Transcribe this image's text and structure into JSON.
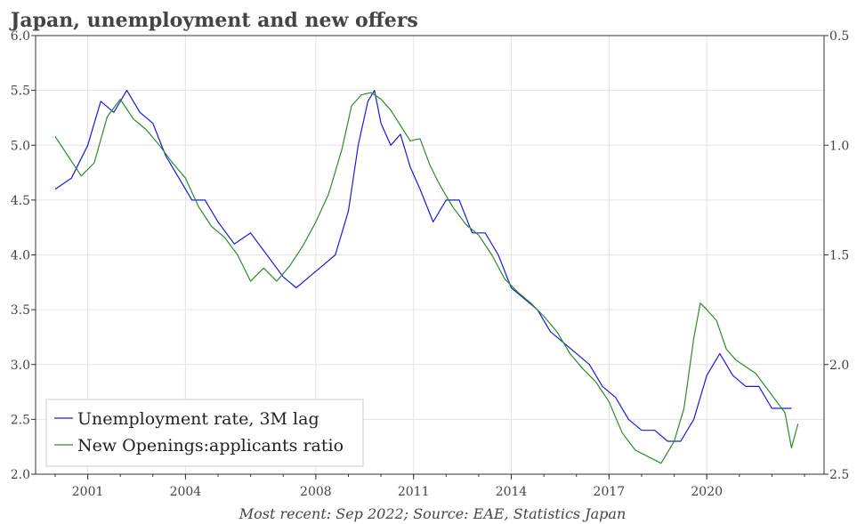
{
  "chart_data": {
    "type": "line",
    "title": "Japan, unemployment and new offers",
    "source": "Most recent: Sep 2022; Source: EAE, Statistics Japan",
    "x_axis": {
      "range": [
        1999.4,
        2023.6
      ],
      "ticks": [
        2001,
        2004,
        2008,
        2011,
        2014,
        2017,
        2020
      ],
      "tick_labels": [
        "2001",
        "2004",
        "2008",
        "2011",
        "2014",
        "2017",
        "2020"
      ]
    },
    "y_left": {
      "range": [
        2.0,
        6.0
      ],
      "ticks": [
        2.0,
        2.5,
        3.0,
        3.5,
        4.0,
        4.5,
        5.0,
        5.5,
        6.0
      ],
      "tick_labels": [
        "2.0",
        "2.5",
        "3.0",
        "3.5",
        "4.0",
        "4.5",
        "5.0",
        "5.5",
        "6.0"
      ]
    },
    "y_right": {
      "range": [
        0.5,
        2.5
      ],
      "inverted": true,
      "ticks": [
        0.5,
        1.0,
        1.5,
        2.0,
        2.5
      ],
      "tick_labels": [
        "0.5",
        "1.0",
        "1.5",
        "2.0",
        "2.5"
      ]
    },
    "grid": true,
    "legend_placement": "bottom-left",
    "series": [
      {
        "name": "Unemployment rate, 3M lag",
        "axis": "left",
        "color": "#1a1adb",
        "x": [
          2000.0,
          2000.5,
          2001.0,
          2001.4,
          2001.8,
          2002.2,
          2002.6,
          2003.0,
          2003.4,
          2003.8,
          2004.2,
          2004.6,
          2005.0,
          2005.5,
          2006.0,
          2006.5,
          2007.0,
          2007.4,
          2007.8,
          2008.2,
          2008.6,
          2009.0,
          2009.3,
          2009.6,
          2009.8,
          2010.0,
          2010.3,
          2010.6,
          2010.9,
          2011.2,
          2011.6,
          2012.0,
          2012.4,
          2012.8,
          2013.2,
          2013.6,
          2014.0,
          2014.4,
          2014.8,
          2015.2,
          2015.6,
          2016.0,
          2016.4,
          2016.8,
          2017.2,
          2017.6,
          2018.0,
          2018.4,
          2018.8,
          2019.2,
          2019.6,
          2020.0,
          2020.4,
          2020.8,
          2021.2,
          2021.6,
          2022.0,
          2022.4,
          2022.6
        ],
        "values": [
          4.6,
          4.7,
          5.0,
          5.4,
          5.3,
          5.5,
          5.3,
          5.2,
          4.9,
          4.7,
          4.5,
          4.5,
          4.3,
          4.1,
          4.2,
          4.0,
          3.8,
          3.7,
          3.8,
          3.9,
          4.0,
          4.4,
          5.0,
          5.4,
          5.5,
          5.2,
          5.0,
          5.1,
          4.8,
          4.6,
          4.3,
          4.5,
          4.5,
          4.2,
          4.2,
          4.0,
          3.7,
          3.6,
          3.5,
          3.3,
          3.2,
          3.1,
          3.0,
          2.8,
          2.7,
          2.5,
          2.4,
          2.4,
          2.3,
          2.3,
          2.5,
          2.9,
          3.1,
          2.9,
          2.8,
          2.8,
          2.6,
          2.6,
          2.6
        ]
      },
      {
        "name": "New Openings:applicants ratio",
        "axis": "right",
        "color": "#2a8c2a",
        "x": [
          2000.0,
          2000.4,
          2000.8,
          2001.2,
          2001.6,
          2002.0,
          2002.4,
          2002.8,
          2003.2,
          2003.6,
          2004.0,
          2004.4,
          2004.8,
          2005.2,
          2005.6,
          2006.0,
          2006.4,
          2006.8,
          2007.2,
          2007.6,
          2008.0,
          2008.4,
          2008.8,
          2009.1,
          2009.4,
          2009.7,
          2010.0,
          2010.3,
          2010.6,
          2010.9,
          2011.2,
          2011.5,
          2011.8,
          2012.2,
          2012.6,
          2013.0,
          2013.4,
          2013.8,
          2014.2,
          2014.6,
          2015.0,
          2015.4,
          2015.8,
          2016.2,
          2016.6,
          2017.0,
          2017.4,
          2017.8,
          2018.2,
          2018.6,
          2019.0,
          2019.3,
          2019.6,
          2019.8,
          2020.0,
          2020.3,
          2020.6,
          2020.9,
          2021.2,
          2021.5,
          2021.8,
          2022.1,
          2022.4,
          2022.6,
          2022.8
        ],
        "values": [
          0.96,
          1.05,
          1.14,
          1.08,
          0.87,
          0.79,
          0.88,
          0.93,
          1.0,
          1.08,
          1.15,
          1.28,
          1.37,
          1.42,
          1.5,
          1.62,
          1.56,
          1.62,
          1.55,
          1.46,
          1.35,
          1.22,
          1.02,
          0.82,
          0.77,
          0.76,
          0.79,
          0.84,
          0.91,
          0.98,
          0.97,
          1.09,
          1.18,
          1.28,
          1.36,
          1.41,
          1.5,
          1.61,
          1.67,
          1.72,
          1.78,
          1.85,
          1.95,
          2.02,
          2.08,
          2.17,
          2.31,
          2.39,
          2.42,
          2.45,
          2.35,
          2.2,
          1.88,
          1.72,
          1.75,
          1.8,
          1.93,
          1.98,
          2.01,
          2.04,
          2.1,
          2.16,
          2.22,
          2.38,
          2.27
        ]
      }
    ]
  }
}
